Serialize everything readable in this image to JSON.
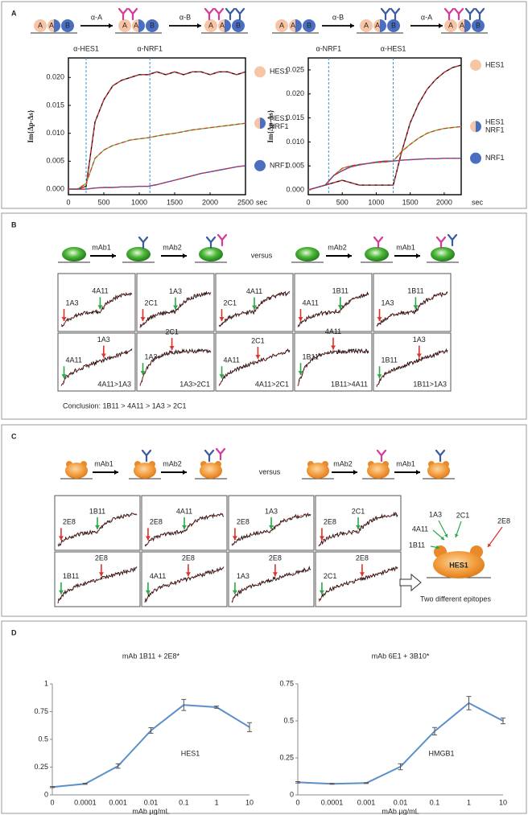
{
  "panel_labels": [
    "A",
    "B",
    "C",
    "D"
  ],
  "A": {
    "schemes": [
      {
        "steps": [
          "α-A",
          "α-B"
        ]
      },
      {
        "steps": [
          "α-B",
          "α-A"
        ]
      }
    ],
    "site_labels": [
      "A",
      "B"
    ]
  },
  "B": {
    "steps": [
      "mAb1",
      "mAb2"
    ],
    "versus": "versus",
    "steps_alt": [
      "mAb2",
      "mAb1"
    ],
    "rows": [
      {
        "first_arrow_color": "#e0302a",
        "second_arrow_color": "#2aa84a",
        "panels": [
          {
            "first": "1A3",
            "second": "4A11"
          },
          {
            "first": "2C1",
            "second": "1A3"
          },
          {
            "first": "2C1",
            "second": "4A11"
          },
          {
            "first": "4A11",
            "second": "1B11"
          },
          {
            "first": "1A3",
            "second": "1B11"
          }
        ]
      },
      {
        "first_arrow_color": "#2aa84a",
        "second_arrow_color": "#e0302a",
        "panels": [
          {
            "first": "4A11",
            "second": "1A3",
            "result": "4A11>1A3"
          },
          {
            "first": "1A3",
            "second": "2C1",
            "result": "1A3>2C1"
          },
          {
            "first": "4A11",
            "second": "2C1",
            "result": "4A11>2C1"
          },
          {
            "first": "1B11",
            "second": "4A11",
            "result": "1B11>4A11"
          },
          {
            "first": "1B11",
            "second": "1A3",
            "result": "1B11>1A3"
          }
        ]
      }
    ],
    "conclusion": "Conclusion: 1B11 > 4A11 > 1A3 > 2C1"
  },
  "C": {
    "steps": [
      "mAb1",
      "mAb2"
    ],
    "versus": "versus",
    "steps_alt": [
      "mAb2",
      "mAb1"
    ],
    "rows": [
      {
        "first_arrow_color": "#e0302a",
        "second_arrow_color": "#2aa84a",
        "panels": [
          {
            "first": "2E8",
            "second": "1B11"
          },
          {
            "first": "2E8",
            "second": "4A11"
          },
          {
            "first": "2E8",
            "second": "1A3"
          },
          {
            "first": "2E8",
            "second": "2C1"
          }
        ]
      },
      {
        "first_arrow_color": "#2aa84a",
        "second_arrow_color": "#e0302a",
        "panels": [
          {
            "first": "1B11",
            "second": "2E8"
          },
          {
            "first": "4A11",
            "second": "2E8"
          },
          {
            "first": "1A3",
            "second": "2E8"
          },
          {
            "first": "2C1",
            "second": "2E8"
          }
        ]
      }
    ],
    "epitope_labels": [
      "1A3",
      "2C1",
      "2E8",
      "4A11",
      "1B11"
    ],
    "protein": "HES1",
    "caption": "Two different epitopes"
  },
  "chart_data": [
    {
      "type": "line",
      "ylabel": "Im{Δp-Δs}",
      "xlabel": "sec",
      "xlim": [
        0,
        2500
      ],
      "xticks": [
        0,
        500,
        1000,
        1500,
        2000,
        2500
      ],
      "ylim": [
        -0.001,
        0.0235
      ],
      "yticks": [
        {
          "value": 0,
          "label": "0.000"
        },
        0.005,
        {
          "value": 0.01,
          "label": "0.010"
        },
        0.015,
        {
          "value": 0.02,
          "label": "0.020"
        }
      ],
      "annotations": [
        {
          "text": "α-HES1",
          "x": 250
        },
        {
          "text": "α-NRF1",
          "x": 1150
        }
      ],
      "fit_color": "#e03030",
      "legend": "right",
      "x": [
        0,
        125,
        250,
        375,
        500,
        625,
        750,
        875,
        1000,
        1125,
        1250,
        1375,
        1500,
        1625,
        1750,
        1875,
        2000,
        2125,
        2250,
        2375,
        2500
      ],
      "series": [
        {
          "name": "HES1",
          "color": "#111111",
          "marker_color": "#f7c5a5",
          "values": [
            0,
            0,
            0.0005,
            0.012,
            0.016,
            0.0185,
            0.0195,
            0.02,
            0.0205,
            0.0205,
            0.021,
            0.0205,
            0.021,
            0.0205,
            0.021,
            0.021,
            0.0205,
            0.021,
            0.021,
            0.0205,
            0.021
          ]
        },
        {
          "name": "HES1 NRF1",
          "color": "#6dbf3a",
          "marker_color": [
            "#f7c5a5",
            "#4a6fc0"
          ],
          "values": [
            0,
            0,
            0.001,
            0.0055,
            0.007,
            0.0078,
            0.0083,
            0.0088,
            0.009,
            0.0092,
            0.0095,
            0.0098,
            0.01,
            0.0103,
            0.0106,
            0.0108,
            0.011,
            0.0112,
            0.0114,
            0.0116,
            0.0118
          ]
        },
        {
          "name": "NRF1",
          "color": "#3050c8",
          "marker_color": "#4a6fc0",
          "values": [
            0,
            0,
            0,
            0.0002,
            0.0003,
            0.0003,
            0.0004,
            0.0004,
            0.0005,
            0.0005,
            0.0008,
            0.0012,
            0.0016,
            0.002,
            0.0024,
            0.0028,
            0.0031,
            0.0034,
            0.0037,
            0.004,
            0.0042
          ]
        }
      ]
    },
    {
      "type": "line",
      "ylabel": "Im{Δp-Δs}",
      "xlabel": "sec",
      "xlim": [
        0,
        2250
      ],
      "xticks": [
        0,
        500,
        1000,
        1500,
        2000
      ],
      "ylim": [
        -0.001,
        0.0275
      ],
      "yticks": [
        {
          "value": 0,
          "label": "0.000"
        },
        0.005,
        {
          "value": 0.01,
          "label": "0.010"
        },
        0.015,
        {
          "value": 0.02,
          "label": "0.020"
        },
        0.025
      ],
      "annotations": [
        {
          "text": "α-NRF1",
          "x": 300
        },
        {
          "text": "α-HES1",
          "x": 1250
        }
      ],
      "fit_color": "#e03030",
      "legend": "right",
      "x": [
        0,
        125,
        250,
        375,
        500,
        625,
        750,
        875,
        1000,
        1125,
        1250,
        1375,
        1500,
        1625,
        1750,
        1875,
        2000,
        2125,
        2250
      ],
      "series": [
        {
          "name": "HES1",
          "color": "#111111",
          "marker_color": "#f7c5a5",
          "values": [
            0,
            0.0005,
            0.001,
            0.0015,
            0.002,
            0.0015,
            0.001,
            0.001,
            0.001,
            0.001,
            0.001,
            0.008,
            0.014,
            0.018,
            0.021,
            0.023,
            0.0245,
            0.0255,
            0.026
          ]
        },
        {
          "name": "HES1 NRF1",
          "color": "#6dbf3a",
          "marker_color": [
            "#f7c5a5",
            "#4a6fc0"
          ],
          "values": [
            0,
            0.0005,
            0.001,
            0.003,
            0.0045,
            0.005,
            0.0053,
            0.0055,
            0.0057,
            0.0058,
            0.006,
            0.008,
            0.0095,
            0.0108,
            0.0118,
            0.0124,
            0.0128,
            0.013,
            0.0132
          ]
        },
        {
          "name": "NRF1",
          "color": "#3050c8",
          "marker_color": "#4a6fc0",
          "values": [
            0,
            0.0005,
            0.001,
            0.003,
            0.004,
            0.0048,
            0.0052,
            0.0055,
            0.0058,
            0.006,
            0.006,
            0.0062,
            0.0063,
            0.0064,
            0.0065,
            0.0065,
            0.0066,
            0.0066,
            0.0066
          ]
        }
      ]
    },
    {
      "type": "line",
      "title": "mAb 1B11 + 2E8*",
      "xlabel": "mAb µg/mL",
      "annotation": "HES1",
      "categories": [
        "0",
        "0.0001",
        "0.001",
        "0.01",
        "0.1",
        "1",
        "10"
      ],
      "ylim": [
        0,
        1
      ],
      "yticks": [
        0,
        0.25,
        0.5,
        0.75,
        1
      ],
      "series": [
        {
          "color": "#5b8fc9",
          "values": [
            0.07,
            0.1,
            0.26,
            0.58,
            0.81,
            0.79,
            0.61
          ],
          "errors": [
            0.005,
            0.005,
            0.02,
            0.025,
            0.05,
            0.01,
            0.04
          ]
        }
      ]
    },
    {
      "type": "line",
      "title": "mAb 6E1 + 3B10*",
      "xlabel": "mAb µg/mL",
      "annotation": "HMGB1",
      "categories": [
        "0",
        "0.0001",
        "0.001",
        "0.01",
        "0.1",
        "1",
        "10"
      ],
      "ylim": [
        0,
        0.75
      ],
      "yticks": [
        0,
        0.25,
        0.5,
        0.75
      ],
      "series": [
        {
          "color": "#5b8fc9",
          "values": [
            0.085,
            0.075,
            0.08,
            0.19,
            0.43,
            0.62,
            0.5
          ],
          "errors": [
            0.005,
            0.003,
            0.003,
            0.02,
            0.025,
            0.045,
            0.02
          ]
        }
      ]
    }
  ]
}
